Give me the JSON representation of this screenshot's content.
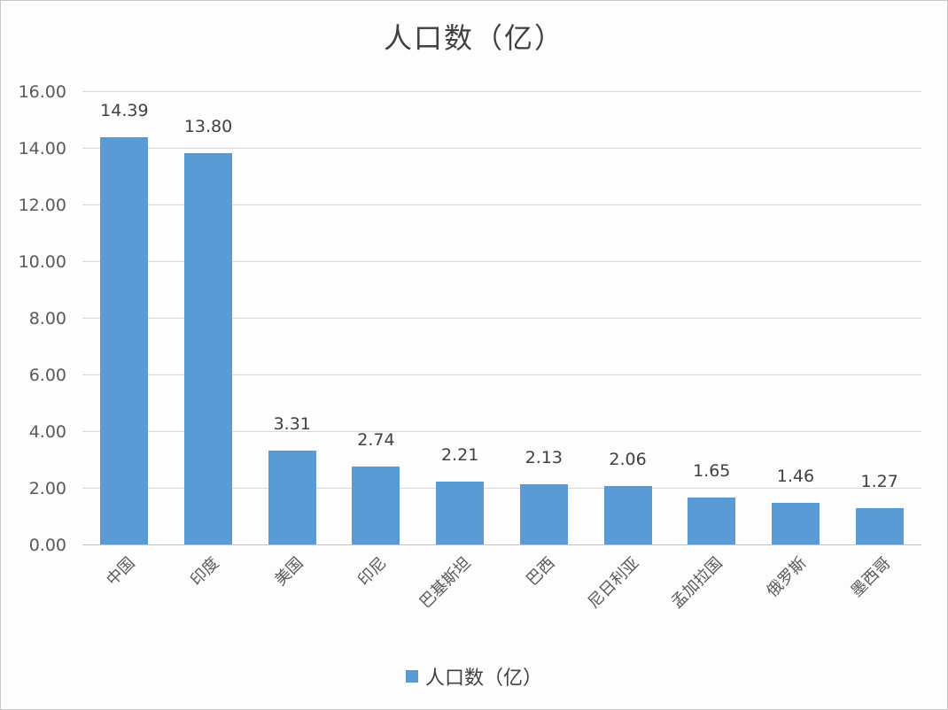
{
  "chart_data": {
    "type": "bar",
    "title": "人口数（亿）",
    "xlabel": "",
    "ylabel": "",
    "categories": [
      "中国",
      "印度",
      "美国",
      "印尼",
      "巴基斯坦",
      "巴西",
      "尼日利亚",
      "孟加拉国",
      "俄罗斯",
      "墨西哥"
    ],
    "series": [
      {
        "name": "人口数（亿）",
        "values": [
          14.39,
          13.8,
          3.31,
          2.74,
          2.21,
          2.13,
          2.06,
          1.65,
          1.46,
          1.27
        ],
        "color": "#5b9bd5"
      }
    ],
    "value_labels": [
      "14.39",
      "13.80",
      "3.31",
      "2.74",
      "2.21",
      "2.13",
      "2.06",
      "1.65",
      "1.46",
      "1.27"
    ],
    "ylim": [
      0,
      16
    ],
    "yticks": [
      "0.00",
      "2.00",
      "4.00",
      "6.00",
      "8.00",
      "10.00",
      "12.00",
      "14.00",
      "16.00"
    ],
    "grid": true,
    "legend_position": "bottom",
    "data_labels": true
  },
  "title": "人口数（亿）",
  "legend": {
    "label": "人口数（亿）",
    "color": "#5b9bd5"
  }
}
